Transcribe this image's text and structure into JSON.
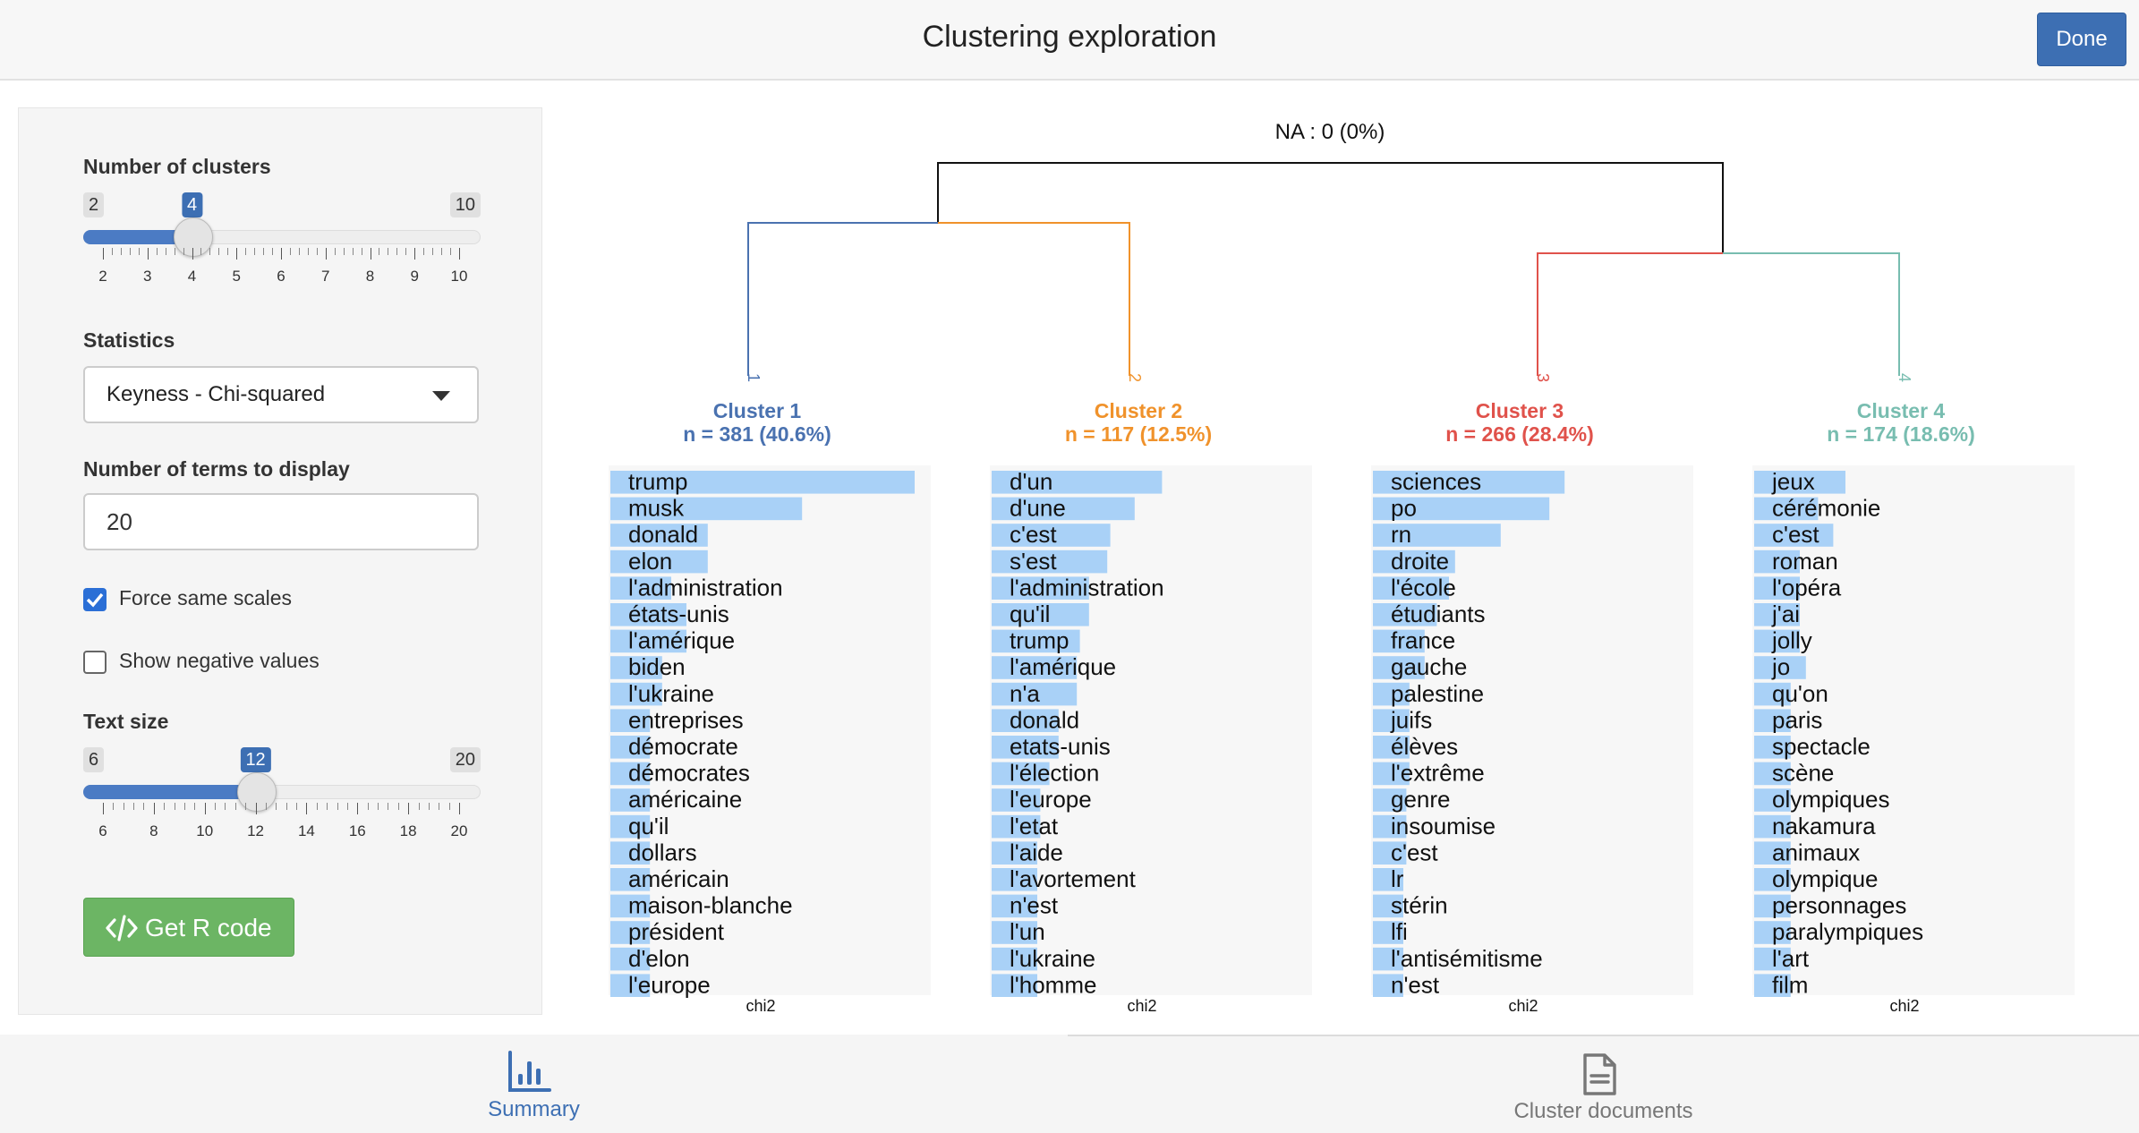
{
  "header": {
    "title": "Clustering exploration",
    "done_label": "Done"
  },
  "sidebar": {
    "clusters_label": "Number of clusters",
    "clusters_min": "2",
    "clusters_max": "10",
    "clusters_value": "4",
    "clusters_ticks": [
      "2",
      "3",
      "4",
      "5",
      "6",
      "7",
      "8",
      "9",
      "10"
    ],
    "statistics_label": "Statistics",
    "statistics_value": "Keyness - Chi-squared",
    "terms_label": "Number of terms to display",
    "terms_value": "20",
    "force_scales_label": "Force same scales",
    "force_scales_checked": true,
    "negative_label": "Show negative values",
    "negative_checked": false,
    "textsize_label": "Text size",
    "textsize_min": "6",
    "textsize_max": "20",
    "textsize_value": "12",
    "textsize_ticks": [
      "6",
      "8",
      "10",
      "12",
      "14",
      "16",
      "18",
      "20"
    ],
    "rcode_label": "Get R code"
  },
  "tabs": {
    "summary_label": "Summary",
    "documents_label": "Cluster documents"
  },
  "chart_data": {
    "type": "bar",
    "na_label": "NA : 0 (0%)",
    "force_same_scales": true,
    "xlabel": "chi2",
    "clusters": [
      {
        "leaf_label": "1",
        "title": "Cluster 1",
        "subtitle": "n = 381 (40.6%)",
        "color": "#4a72b0",
        "terms": [
          "trump",
          "musk",
          "donald",
          "elon",
          "l'administration",
          "états-unis",
          "l'amérique",
          "biden",
          "l'ukraine",
          "entreprises",
          "démocrate",
          "démocrates",
          "américaine",
          "qu'il",
          "dollars",
          "américain",
          "maison-blanche",
          "président",
          "d'elon",
          "l'europe"
        ],
        "values": [
          1.0,
          0.63,
          0.32,
          0.32,
          0.2,
          0.25,
          0.25,
          0.17,
          0.17,
          0.13,
          0.13,
          0.13,
          0.13,
          0.13,
          0.13,
          0.13,
          0.13,
          0.13,
          0.13,
          0.13
        ]
      },
      {
        "leaf_label": "2",
        "title": "Cluster 2",
        "subtitle": "n = 117 (12.5%)",
        "color": "#f0922b",
        "terms": [
          "d'un",
          "d'une",
          "c'est",
          "s'est",
          "l'administration",
          "qu'il",
          "trump",
          "l'amérique",
          "n'a",
          "donald",
          "etats-unis",
          "l'élection",
          "l'europe",
          "l'etat",
          "l'aide",
          "l'avortement",
          "n'est",
          "l'un",
          "l'ukraine",
          "l'homme"
        ],
        "values": [
          0.56,
          0.47,
          0.39,
          0.38,
          0.32,
          0.32,
          0.29,
          0.28,
          0.28,
          0.22,
          0.22,
          0.19,
          0.16,
          0.16,
          0.15,
          0.15,
          0.15,
          0.15,
          0.15,
          0.15
        ]
      },
      {
        "leaf_label": "3",
        "title": "Cluster 3",
        "subtitle": "n = 266 (28.4%)",
        "color": "#e0524b",
        "terms": [
          "sciences",
          "po",
          "rn",
          "droite",
          "l'école",
          "étudiants",
          "france",
          "gauche",
          "palestine",
          "juifs",
          "élèves",
          "l'extrême",
          "genre",
          "insoumise",
          "c'est",
          "lr",
          "stérin",
          "lfi",
          "l'antisémitisme",
          "n'est"
        ],
        "values": [
          0.63,
          0.58,
          0.42,
          0.27,
          0.25,
          0.21,
          0.17,
          0.17,
          0.12,
          0.12,
          0.12,
          0.12,
          0.11,
          0.11,
          0.11,
          0.1,
          0.1,
          0.1,
          0.1,
          0.1
        ]
      },
      {
        "leaf_label": "4",
        "title": "Cluster 4",
        "subtitle": "n = 174 (18.6%)",
        "color": "#78bdb0",
        "terms": [
          "jeux",
          "cérémonie",
          "c'est",
          "roman",
          "l'opéra",
          "j'ai",
          "jolly",
          "jo",
          "qu'on",
          "paris",
          "spectacle",
          "scène",
          "olympiques",
          "nakamura",
          "animaux",
          "olympique",
          "personnages",
          "paralympiques",
          "l'art",
          "film"
        ],
        "values": [
          0.3,
          0.21,
          0.26,
          0.15,
          0.15,
          0.15,
          0.15,
          0.17,
          0.12,
          0.12,
          0.12,
          0.12,
          0.12,
          0.12,
          0.12,
          0.12,
          0.12,
          0.12,
          0.12,
          0.12
        ]
      }
    ]
  }
}
